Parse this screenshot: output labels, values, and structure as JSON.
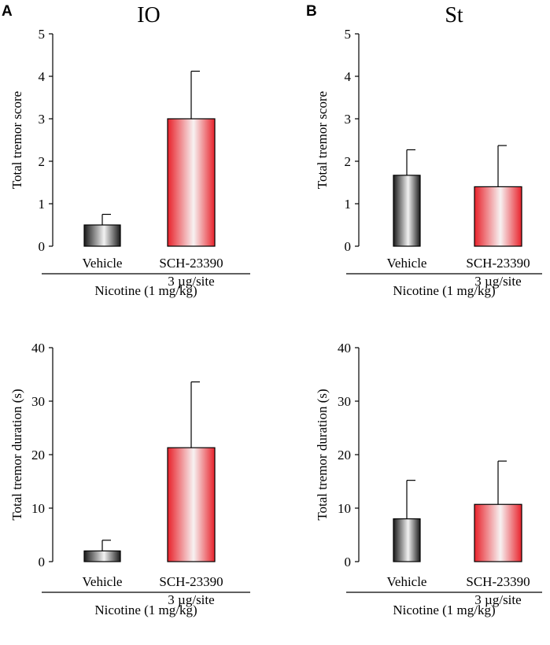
{
  "panel_labels": [
    "A",
    "B"
  ],
  "column_titles": [
    "IO",
    "St"
  ],
  "colors": {
    "vehicle_dark": "#1a1a1a",
    "vehicle_light": "#f2f2f2",
    "sch_red": "#e8222b",
    "sch_light": "#f7f2f2"
  },
  "chart_data": [
    {
      "type": "bar",
      "panel": "A",
      "title": "IO",
      "ylabel": "Total tremor score",
      "ylim": [
        0,
        5
      ],
      "yticks": [
        0,
        1,
        2,
        3,
        4,
        5
      ],
      "categories": [
        "Vehicle",
        "SCH-23390\n3 µg/site"
      ],
      "values": [
        0.5,
        3.0
      ],
      "errors": [
        0.25,
        1.12
      ],
      "group_label": "Nicotine (1 mg/kg)"
    },
    {
      "type": "bar",
      "panel": "B",
      "title": "St",
      "ylabel": "Total tremor score",
      "ylim": [
        0,
        5
      ],
      "yticks": [
        0,
        1,
        2,
        3,
        4,
        5
      ],
      "categories": [
        "Vehicle",
        "SCH-23390\n3 µg/site"
      ],
      "values": [
        1.67,
        1.4
      ],
      "errors": [
        0.6,
        0.97
      ],
      "group_label": "Nicotine (1 mg/kg)"
    },
    {
      "type": "bar",
      "panel": "A",
      "title": "",
      "ylabel": "Total tremor duration (s)",
      "ylim": [
        0,
        40
      ],
      "yticks": [
        0,
        10,
        20,
        30,
        40
      ],
      "categories": [
        "Vehicle",
        "SCH-23390\n3 µg/site"
      ],
      "values": [
        2.0,
        21.3
      ],
      "errors": [
        2.0,
        12.3
      ],
      "group_label": "Nicotine (1 mg/kg)"
    },
    {
      "type": "bar",
      "panel": "B",
      "title": "",
      "ylabel": "Total tremor duration (s)",
      "ylim": [
        0,
        40
      ],
      "yticks": [
        0,
        10,
        20,
        30,
        40
      ],
      "categories": [
        "Vehicle",
        "SCH-23390\n3 µg/site"
      ],
      "values": [
        8.0,
        10.7
      ],
      "errors": [
        7.2,
        8.1
      ],
      "group_label": "Nicotine (1 mg/kg)"
    }
  ]
}
